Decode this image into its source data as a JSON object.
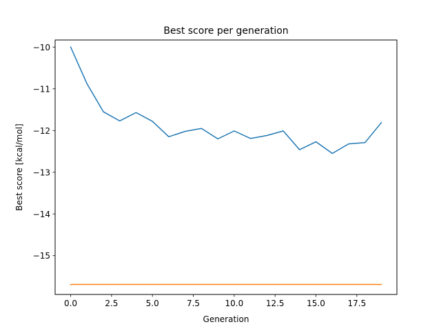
{
  "chart_data": {
    "type": "line",
    "title": "Best score per generation",
    "xlabel": "Generation",
    "ylabel": "Best score [kcal/mol]",
    "xlim": [
      -0.95,
      19.95
    ],
    "ylim": [
      -15.93,
      -9.83
    ],
    "x_ticks": [
      0.0,
      2.5,
      5.0,
      7.5,
      10.0,
      12.5,
      15.0,
      17.5
    ],
    "x_tick_labels": [
      "0.0",
      "2.5",
      "5.0",
      "7.5",
      "10.0",
      "12.5",
      "15.0",
      "17.5"
    ],
    "y_ticks": [
      -10,
      -11,
      -12,
      -13,
      -14,
      -15
    ],
    "y_tick_labels": [
      "−10",
      "−11",
      "−12",
      "−13",
      "−14",
      "−15"
    ],
    "grid": false,
    "x": [
      0,
      1,
      2,
      3,
      4,
      5,
      6,
      7,
      8,
      9,
      10,
      11,
      12,
      13,
      14,
      15,
      16,
      17,
      18,
      19
    ],
    "series": [
      {
        "color": "#1f77b4",
        "values": [
          -10.0,
          -10.88,
          -11.55,
          -11.77,
          -11.57,
          -11.78,
          -12.15,
          -12.02,
          -11.95,
          -12.2,
          -12.01,
          -12.19,
          -12.12,
          -12.01,
          -12.46,
          -12.27,
          -12.55,
          -12.32,
          -12.29,
          -11.81
        ]
      },
      {
        "color": "#ff7f0e",
        "values": [
          -15.69,
          -15.69,
          -15.69,
          -15.69,
          -15.69,
          -15.69,
          -15.69,
          -15.69,
          -15.69,
          -15.69,
          -15.69,
          -15.69,
          -15.69,
          -15.69,
          -15.69,
          -15.69,
          -15.69,
          -15.69,
          -15.69,
          -15.69
        ]
      }
    ]
  }
}
